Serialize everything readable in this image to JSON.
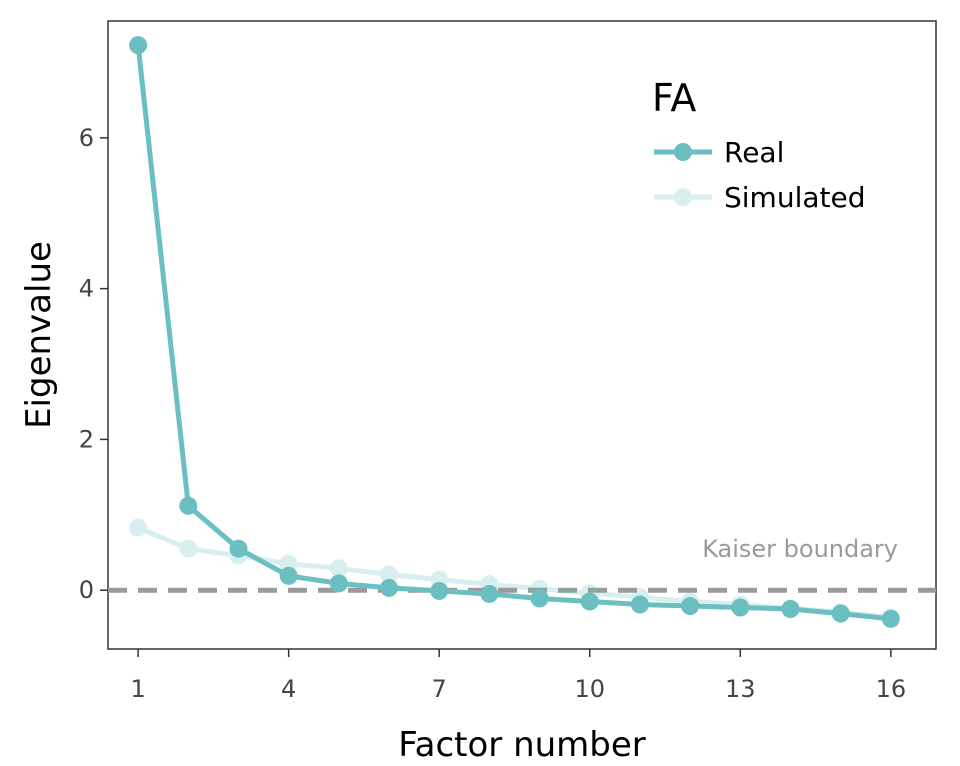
{
  "chart_data": {
    "type": "line",
    "xlabel": "Factor number",
    "ylabel": "Eigenvalue",
    "x": [
      1,
      2,
      3,
      4,
      5,
      6,
      7,
      8,
      9,
      10,
      11,
      12,
      13,
      14,
      15,
      16
    ],
    "x_ticks": [
      "1",
      "4",
      "7",
      "10",
      "13",
      "16"
    ],
    "y_ticks": [
      "0",
      "2",
      "4",
      "6"
    ],
    "xlim": [
      0.4,
      16.9
    ],
    "ylim": [
      -0.78,
      7.55
    ],
    "grid": false,
    "legend": {
      "title": "FA",
      "placement": "top-right"
    },
    "series": [
      {
        "name": "Real",
        "color": "#6bbfc1",
        "opacity": 1,
        "values": [
          7.23,
          1.12,
          0.55,
          0.19,
          0.09,
          0.03,
          -0.01,
          -0.05,
          -0.11,
          -0.15,
          -0.19,
          -0.21,
          -0.23,
          -0.25,
          -0.31,
          -0.38
        ]
      },
      {
        "name": "Simulated",
        "color": "#6bbfc1",
        "opacity": 0.25,
        "values": [
          0.83,
          0.55,
          0.46,
          0.35,
          0.29,
          0.21,
          0.14,
          0.08,
          0.02,
          -0.04,
          -0.09,
          -0.15,
          -0.19,
          -0.24,
          -0.29,
          -0.36
        ]
      }
    ],
    "reference_line": {
      "y": 0,
      "label": "Kaiser boundary",
      "color": "#9a9a9a",
      "style": "dashed"
    }
  }
}
